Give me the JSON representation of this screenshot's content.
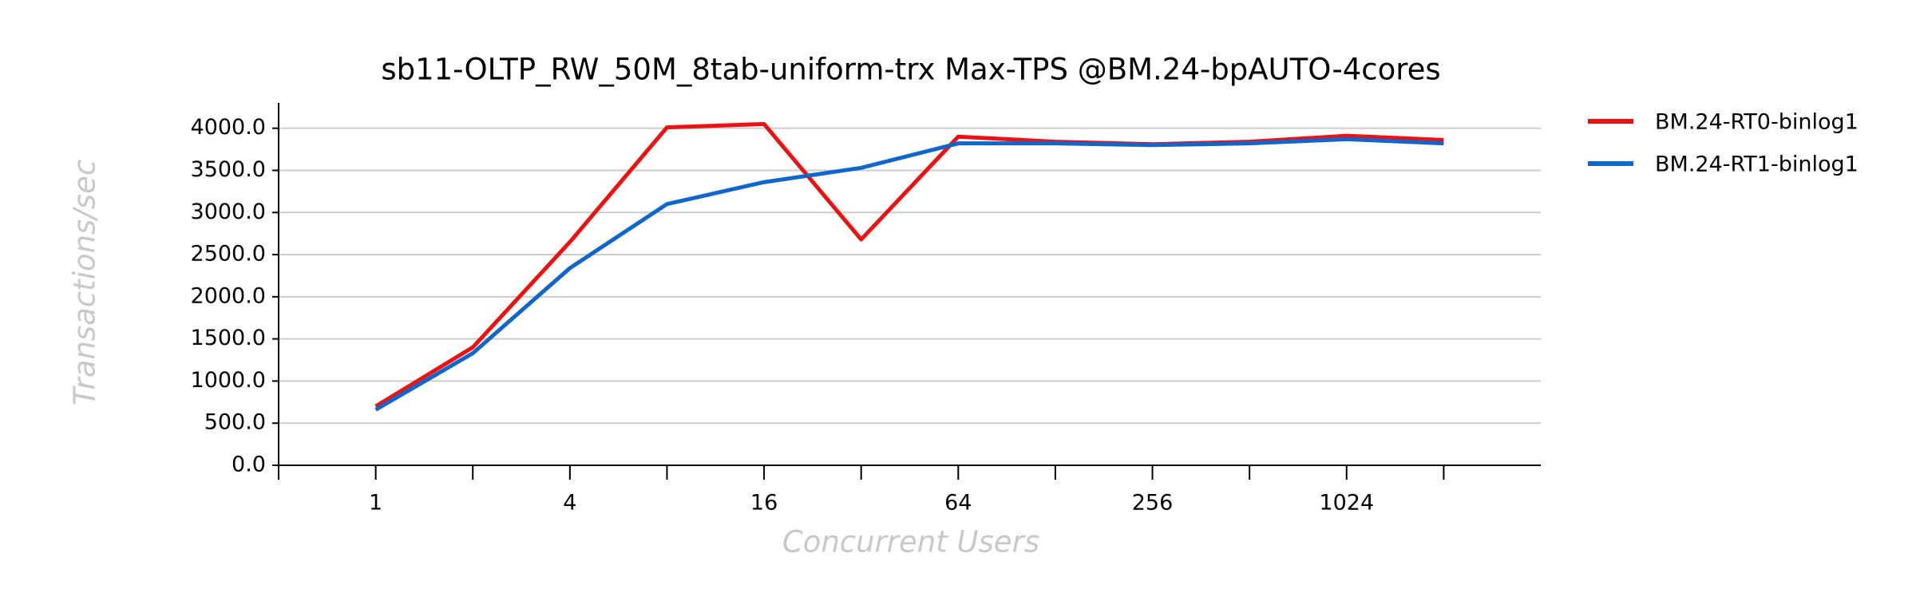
{
  "chart_data": {
    "type": "line",
    "title": "sb11-OLTP_RW_50M_8tab-uniform-trx Max-TPS @BM.24-bpAUTO-4cores",
    "x_label": "Concurrent Users",
    "y_label": "Transactions/sec",
    "categories": [
      "1",
      null,
      "4",
      null,
      "16",
      null,
      "64",
      null,
      "256",
      null,
      "1024",
      null
    ],
    "series": [
      {
        "name": "BM.24-RT0-binlog1",
        "color": "#ee1111",
        "values": [
          700,
          1400,
          2650,
          4010,
          4050,
          2680,
          3900,
          3840,
          3810,
          3840,
          3910,
          3860
        ]
      },
      {
        "name": "BM.24-RT1-binlog1",
        "color": "#1166cc",
        "values": [
          660,
          1330,
          2340,
          3100,
          3360,
          3530,
          3820,
          3820,
          3800,
          3820,
          3870,
          3820
        ]
      }
    ],
    "ylim": [
      0,
      4300
    ],
    "yticks": [
      {
        "value": 0,
        "label": "0.0"
      },
      {
        "value": 500,
        "label": "500.0"
      },
      {
        "value": 1000,
        "label": "1000.0"
      },
      {
        "value": 1500,
        "label": "1500.0"
      },
      {
        "value": 2000,
        "label": "2000.0"
      },
      {
        "value": 2500,
        "label": "2500.0"
      },
      {
        "value": 3000,
        "label": "3000.0"
      },
      {
        "value": 3500,
        "label": "3500.0"
      },
      {
        "value": 4000,
        "label": "4000.0"
      }
    ],
    "grid": true,
    "legend": "right"
  }
}
